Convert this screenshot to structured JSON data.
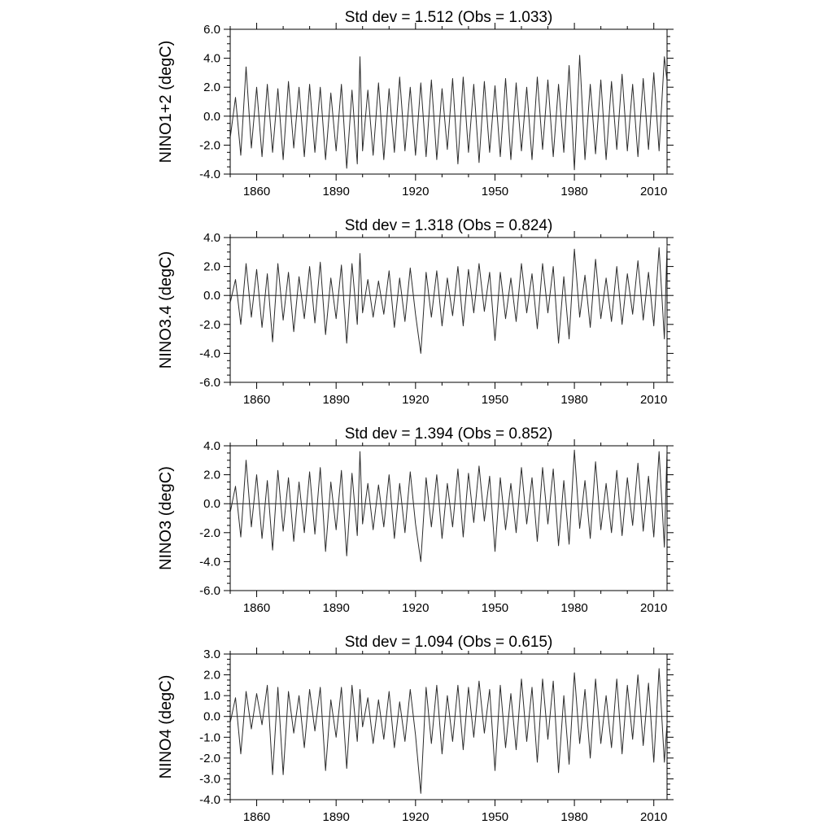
{
  "colors": {
    "line": "#2b2b2b",
    "axis": "#000000",
    "background": "#ffffff"
  },
  "chart_data": [
    {
      "type": "line",
      "title": "Std dev = 1.512 (Obs = 1.033)",
      "xlabel": "",
      "ylabel": "NINO1+2 (degC)",
      "xlim": [
        1850,
        2015
      ],
      "ylim": [
        -4.0,
        6.0
      ],
      "xticks": [
        1860,
        1890,
        1920,
        1950,
        1980,
        2010
      ],
      "xtick_labels": [
        "1860",
        "1890",
        "1920",
        "1950",
        "1980",
        "2010"
      ],
      "yticks": [
        -4.0,
        -2.0,
        0.0,
        2.0,
        4.0,
        6.0
      ],
      "ytick_labels": [
        "-4.0",
        "-2.0",
        "0.0",
        "2.0",
        "4.0",
        "6.0"
      ],
      "zero_line": true,
      "grid": false,
      "series": [
        {
          "x": [
            1850,
            1852,
            1854,
            1856,
            1858,
            1860,
            1862,
            1864,
            1866,
            1868,
            1870,
            1872,
            1874,
            1876,
            1878,
            1880,
            1882,
            1884,
            1886,
            1888,
            1890,
            1892,
            1894,
            1896,
            1898,
            1899,
            1900,
            1902,
            1904,
            1906,
            1908,
            1910,
            1912,
            1914,
            1916,
            1918,
            1920,
            1922,
            1924,
            1926,
            1928,
            1930,
            1932,
            1934,
            1936,
            1938,
            1940,
            1942,
            1944,
            1946,
            1948,
            1950,
            1952,
            1954,
            1956,
            1958,
            1960,
            1962,
            1964,
            1966,
            1968,
            1970,
            1972,
            1974,
            1976,
            1978,
            1980,
            1982,
            1984,
            1986,
            1988,
            1990,
            1992,
            1994,
            1996,
            1998,
            2000,
            2002,
            2004,
            2006,
            2008,
            2010,
            2012,
            2014,
            2015
          ],
          "y": [
            -1.5,
            1.3,
            -2.7,
            3.4,
            -2.2,
            2.0,
            -2.8,
            2.2,
            -2.5,
            1.9,
            -3.0,
            2.4,
            -2.2,
            2.0,
            -2.8,
            2.2,
            -2.5,
            2.0,
            -3.0,
            1.6,
            -2.4,
            2.2,
            -3.6,
            1.8,
            -3.3,
            4.1,
            -2.4,
            1.8,
            -2.7,
            2.3,
            -3.0,
            1.9,
            -2.5,
            2.7,
            -2.4,
            2.0,
            -2.7,
            2.3,
            -2.8,
            2.5,
            -3.0,
            1.9,
            -2.3,
            2.6,
            -3.3,
            2.7,
            -2.5,
            2.2,
            -3.2,
            2.4,
            -2.5,
            2.1,
            -2.8,
            2.6,
            -3.0,
            2.3,
            -2.4,
            2.0,
            -3.0,
            2.7,
            -2.3,
            2.5,
            -2.8,
            2.2,
            -2.5,
            3.5,
            -3.7,
            4.2,
            -3.0,
            2.2,
            -2.6,
            2.5,
            -3.0,
            2.4,
            -2.3,
            2.9,
            -2.4,
            2.2,
            -2.8,
            2.6,
            -2.3,
            3.0,
            -2.4,
            4.1,
            2.4
          ]
        }
      ]
    },
    {
      "type": "line",
      "title": "Std dev = 1.318 (Obs = 0.824)",
      "xlabel": "",
      "ylabel": "NINO3.4 (degC)",
      "xlim": [
        1850,
        2015
      ],
      "ylim": [
        -6.0,
        4.0
      ],
      "xticks": [
        1860,
        1890,
        1920,
        1950,
        1980,
        2010
      ],
      "xtick_labels": [
        "1860",
        "1890",
        "1920",
        "1950",
        "1980",
        "2010"
      ],
      "yticks": [
        -6.0,
        -4.0,
        -2.0,
        0.0,
        2.0,
        4.0
      ],
      "ytick_labels": [
        "-6.0",
        "-4.0",
        "-2.0",
        "0.0",
        "2.0",
        "4.0"
      ],
      "zero_line": true,
      "grid": false,
      "series": [
        {
          "x": [
            1850,
            1852,
            1854,
            1856,
            1858,
            1860,
            1862,
            1864,
            1866,
            1868,
            1870,
            1872,
            1874,
            1876,
            1878,
            1880,
            1882,
            1884,
            1886,
            1888,
            1890,
            1892,
            1894,
            1896,
            1898,
            1899,
            1900,
            1902,
            1904,
            1906,
            1908,
            1910,
            1912,
            1914,
            1916,
            1918,
            1920,
            1922,
            1924,
            1926,
            1928,
            1930,
            1932,
            1934,
            1936,
            1938,
            1940,
            1942,
            1944,
            1946,
            1948,
            1950,
            1952,
            1954,
            1956,
            1958,
            1960,
            1962,
            1964,
            1966,
            1968,
            1970,
            1972,
            1974,
            1976,
            1978,
            1980,
            1982,
            1984,
            1986,
            1988,
            1990,
            1992,
            1994,
            1996,
            1998,
            2000,
            2002,
            2004,
            2006,
            2008,
            2010,
            2012,
            2014,
            2015
          ],
          "y": [
            -0.5,
            1.1,
            -2.0,
            2.2,
            -1.5,
            1.8,
            -2.2,
            1.5,
            -3.2,
            2.2,
            -1.7,
            1.6,
            -2.5,
            1.3,
            -1.6,
            2.0,
            -1.9,
            2.3,
            -2.7,
            1.2,
            -1.6,
            2.1,
            -3.3,
            2.2,
            -2.0,
            2.9,
            -1.2,
            1.1,
            -1.5,
            1.0,
            -1.3,
            1.7,
            -2.2,
            1.2,
            -1.8,
            1.9,
            -1.3,
            -4.0,
            1.6,
            -1.5,
            1.7,
            -2.1,
            1.2,
            -1.4,
            2.0,
            -2.1,
            1.8,
            -1.2,
            2.2,
            -1.1,
            1.6,
            -3.1,
            1.6,
            -1.6,
            1.2,
            -1.8,
            2.2,
            -1.2,
            1.5,
            -2.3,
            2.2,
            -1.2,
            2.0,
            -3.3,
            1.3,
            -3.0,
            3.2,
            -1.5,
            1.4,
            -2.2,
            2.5,
            -1.6,
            1.2,
            -1.8,
            2.0,
            -2.0,
            1.5,
            -1.3,
            2.4,
            -1.7,
            1.6,
            -2.1,
            3.3,
            -3.0,
            3.5
          ]
        }
      ]
    },
    {
      "type": "line",
      "title": "Std dev = 1.394 (Obs = 0.852)",
      "xlabel": "",
      "ylabel": "NINO3 (degC)",
      "xlim": [
        1850,
        2015
      ],
      "ylim": [
        -6.0,
        4.0
      ],
      "xticks": [
        1860,
        1890,
        1920,
        1950,
        1980,
        2010
      ],
      "xtick_labels": [
        "1860",
        "1890",
        "1920",
        "1950",
        "1980",
        "2010"
      ],
      "yticks": [
        -6.0,
        -4.0,
        -2.0,
        0.0,
        2.0,
        4.0
      ],
      "ytick_labels": [
        "-6.0",
        "-4.0",
        "-2.0",
        "0.0",
        "2.0",
        "4.0"
      ],
      "zero_line": true,
      "grid": false,
      "series": [
        {
          "x": [
            1850,
            1852,
            1854,
            1856,
            1858,
            1860,
            1862,
            1864,
            1866,
            1868,
            1870,
            1872,
            1874,
            1876,
            1878,
            1880,
            1882,
            1884,
            1886,
            1888,
            1890,
            1892,
            1894,
            1896,
            1898,
            1899,
            1900,
            1902,
            1904,
            1906,
            1908,
            1910,
            1912,
            1914,
            1916,
            1918,
            1920,
            1922,
            1924,
            1926,
            1928,
            1930,
            1932,
            1934,
            1936,
            1938,
            1940,
            1942,
            1944,
            1946,
            1948,
            1950,
            1952,
            1954,
            1956,
            1958,
            1960,
            1962,
            1964,
            1966,
            1968,
            1970,
            1972,
            1974,
            1976,
            1978,
            1980,
            1982,
            1984,
            1986,
            1988,
            1990,
            1992,
            1994,
            1996,
            1998,
            2000,
            2002,
            2004,
            2006,
            2008,
            2010,
            2012,
            2014,
            2015
          ],
          "y": [
            -0.6,
            1.2,
            -2.3,
            3.0,
            -1.6,
            2.0,
            -2.4,
            1.6,
            -3.2,
            2.3,
            -1.9,
            1.8,
            -2.6,
            1.5,
            -2.0,
            2.2,
            -2.1,
            2.5,
            -3.3,
            1.5,
            -1.8,
            2.3,
            -3.6,
            2.1,
            -2.2,
            3.6,
            -1.4,
            1.4,
            -1.8,
            1.3,
            -1.6,
            2.0,
            -2.4,
            1.4,
            -2.0,
            2.2,
            -1.4,
            -4.0,
            1.8,
            -1.6,
            2.0,
            -2.4,
            1.4,
            -1.6,
            2.4,
            -2.3,
            2.1,
            -1.3,
            2.6,
            -1.2,
            1.9,
            -3.3,
            1.8,
            -1.8,
            1.4,
            -2.0,
            2.5,
            -1.4,
            1.8,
            -2.6,
            2.5,
            -1.4,
            2.4,
            -2.9,
            1.6,
            -2.8,
            3.7,
            -1.7,
            1.6,
            -2.4,
            2.9,
            -1.8,
            1.4,
            -2.0,
            2.3,
            -2.2,
            1.8,
            -1.5,
            2.8,
            -1.9,
            1.9,
            -2.3,
            3.6,
            -3.0,
            3.8
          ]
        }
      ]
    },
    {
      "type": "line",
      "title": "Std dev = 1.094 (Obs = 0.615)",
      "xlabel": "",
      "ylabel": "NINO4 (degC)",
      "xlim": [
        1850,
        2015
      ],
      "ylim": [
        -4.0,
        3.0
      ],
      "xticks": [
        1860,
        1890,
        1920,
        1950,
        1980,
        2010
      ],
      "xtick_labels": [
        "1860",
        "1890",
        "1920",
        "1950",
        "1980",
        "2010"
      ],
      "yticks": [
        -4.0,
        -3.0,
        -2.0,
        -1.0,
        0.0,
        1.0,
        2.0,
        3.0
      ],
      "ytick_labels": [
        "-4.0",
        "-3.0",
        "-2.0",
        "-1.0",
        "0.0",
        "1.0",
        "2.0",
        "3.0"
      ],
      "zero_line": true,
      "grid": false,
      "series": [
        {
          "x": [
            1850,
            1852,
            1854,
            1856,
            1858,
            1860,
            1862,
            1864,
            1866,
            1868,
            1870,
            1872,
            1874,
            1876,
            1878,
            1880,
            1882,
            1884,
            1886,
            1888,
            1890,
            1892,
            1894,
            1896,
            1898,
            1899,
            1900,
            1902,
            1904,
            1906,
            1908,
            1910,
            1912,
            1914,
            1916,
            1918,
            1920,
            1922,
            1924,
            1926,
            1928,
            1930,
            1932,
            1934,
            1936,
            1938,
            1940,
            1942,
            1944,
            1946,
            1948,
            1950,
            1952,
            1954,
            1956,
            1958,
            1960,
            1962,
            1964,
            1966,
            1968,
            1970,
            1972,
            1974,
            1976,
            1978,
            1980,
            1982,
            1984,
            1986,
            1988,
            1990,
            1992,
            1994,
            1996,
            1998,
            2000,
            2002,
            2004,
            2006,
            2008,
            2010,
            2012,
            2014,
            2015
          ],
          "y": [
            -0.3,
            0.9,
            -1.8,
            1.2,
            -0.6,
            1.1,
            -0.4,
            1.5,
            -2.8,
            1.4,
            -2.8,
            1.2,
            -0.8,
            1.0,
            -1.5,
            1.3,
            -0.7,
            1.4,
            -2.6,
            0.8,
            -1.0,
            1.4,
            -2.5,
            1.5,
            -1.2,
            1.3,
            -0.5,
            0.9,
            -1.3,
            0.8,
            -1.1,
            1.2,
            -1.5,
            0.7,
            -1.2,
            1.3,
            -0.9,
            -3.7,
            1.4,
            -1.3,
            1.5,
            -1.8,
            1.0,
            -1.2,
            1.5,
            -1.6,
            1.4,
            -1.0,
            1.7,
            -0.8,
            1.3,
            -2.6,
            1.5,
            -1.5,
            1.1,
            -1.6,
            1.8,
            -1.2,
            1.4,
            -2.2,
            1.8,
            -1.1,
            1.7,
            -2.7,
            1.0,
            -2.3,
            2.1,
            -1.3,
            1.3,
            -2.0,
            1.8,
            -1.3,
            1.0,
            -1.5,
            1.8,
            -1.8,
            1.5,
            -1.1,
            2.0,
            -1.4,
            1.6,
            -2.2,
            2.3,
            -2.2,
            -0.3
          ]
        }
      ]
    }
  ]
}
